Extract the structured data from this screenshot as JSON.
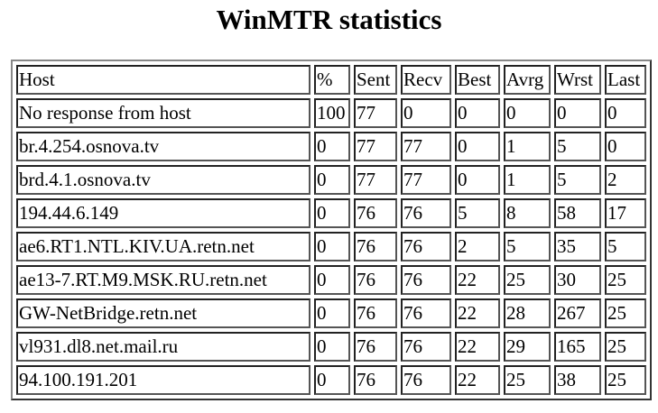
{
  "title": "WinMTR statistics",
  "table": {
    "header": [
      "Host",
      "%",
      "Sent",
      "Recv",
      "Best",
      "Avrg",
      "Wrst",
      "Last"
    ],
    "rows": [
      [
        "No response from host",
        "100",
        "77",
        "0",
        "0",
        "0",
        "0",
        "0"
      ],
      [
        "br.4.254.osnova.tv",
        "0",
        "77",
        "77",
        "0",
        "1",
        "5",
        "0"
      ],
      [
        "brd.4.1.osnova.tv",
        "0",
        "77",
        "77",
        "0",
        "1",
        "5",
        "2"
      ],
      [
        "194.44.6.149",
        "0",
        "76",
        "76",
        "5",
        "8",
        "58",
        "17"
      ],
      [
        "ae6.RT1.NTL.KIV.UA.retn.net",
        "0",
        "76",
        "76",
        "2",
        "5",
        "35",
        "5"
      ],
      [
        "ae13-7.RT.M9.MSK.RU.retn.net",
        "0",
        "76",
        "76",
        "22",
        "25",
        "30",
        "25"
      ],
      [
        "GW-NetBridge.retn.net",
        "0",
        "76",
        "76",
        "22",
        "28",
        "267",
        "25"
      ],
      [
        "vl931.dl8.net.mail.ru",
        "0",
        "76",
        "76",
        "22",
        "29",
        "165",
        "25"
      ],
      [
        "94.100.191.201",
        "0",
        "76",
        "76",
        "22",
        "25",
        "38",
        "25"
      ]
    ]
  }
}
